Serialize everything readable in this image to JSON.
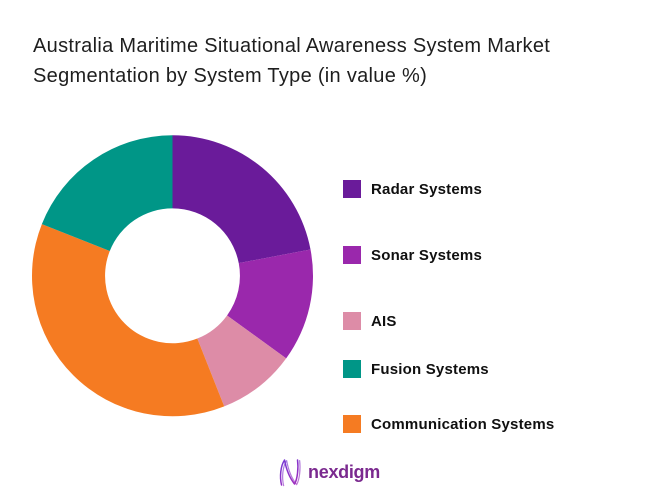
{
  "title": {
    "line1": "Australia Maritime Situational Awareness System Market",
    "line2": "Segmentation by System Type (in value %)"
  },
  "chart_data": {
    "type": "pie",
    "donut": true,
    "title": "Australia Maritime Situational Awareness System Market Segmentation by System Type (in value %)",
    "unit": "value %",
    "direction": "clockwise",
    "start_angle": "12 o'clock",
    "inner_radius_ratio": 0.48,
    "legend_position": "right",
    "series": [
      {
        "name": "Radar Systems",
        "value": 22,
        "color": "#6A1B9A"
      },
      {
        "name": "Sonar Systems",
        "value": 13,
        "color": "#9A28AC"
      },
      {
        "name": "AIS",
        "value": 9,
        "color": "#DD8CA7"
      },
      {
        "name": "Communication Systems",
        "value": 37,
        "color": "#F57B22"
      },
      {
        "name": "Fusion Systems",
        "value": 19,
        "color": "#009687"
      }
    ]
  },
  "legend": {
    "items": [
      {
        "label": "Radar Systems",
        "color": "#6A1B9A"
      },
      {
        "label": "Sonar Systems",
        "color": "#9A28AC"
      },
      {
        "label": "AIS",
        "color": "#DD8CA7"
      },
      {
        "label": "Fusion Systems",
        "color": "#009687"
      },
      {
        "label": "Communication Systems",
        "color": "#F57B22"
      }
    ]
  },
  "footer": {
    "brand": "nexdigm",
    "brand_color": "#7B2A8F"
  }
}
